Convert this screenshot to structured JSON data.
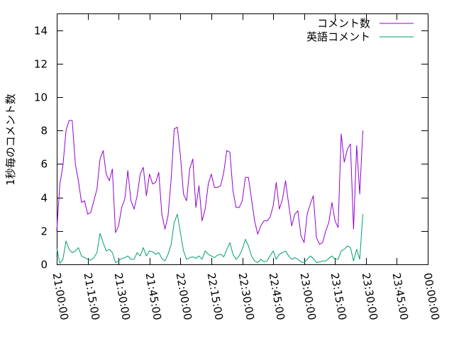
{
  "chart_data": {
    "type": "line",
    "ylabel": "1秒毎のコメント数",
    "xlabel": "",
    "ylim": [
      0,
      15
    ],
    "yticks": [
      0,
      2,
      4,
      6,
      8,
      10,
      12,
      14
    ],
    "xlim": [
      0,
      180
    ],
    "xtick_positions": [
      0,
      15,
      30,
      45,
      60,
      75,
      90,
      105,
      120,
      135,
      150,
      165,
      180
    ],
    "xtick_labels": [
      "21:00:00",
      "21:15:00",
      "21:30:00",
      "21:45:00",
      "22:00:00",
      "22:15:00",
      "22:30:00",
      "22:45:00",
      "23:00:00",
      "23:15:00",
      "23:30:00",
      "23:45:00",
      "00:00:00"
    ],
    "x_unit": "minutes since 21:00:00",
    "legend_position": "top-right",
    "grid": false,
    "series": [
      {
        "name": "コメント数",
        "color": "#9400d3",
        "points": [
          [
            0,
            2.0
          ],
          [
            1.5,
            4.8
          ],
          [
            3,
            5.9
          ],
          [
            4.5,
            8.0
          ],
          [
            6,
            8.6
          ],
          [
            7.5,
            8.6
          ],
          [
            9,
            6.0
          ],
          [
            10.5,
            5.0
          ],
          [
            12,
            3.7
          ],
          [
            13.5,
            3.8
          ],
          [
            15,
            3.0
          ],
          [
            16.5,
            3.1
          ],
          [
            18,
            3.8
          ],
          [
            19.5,
            4.5
          ],
          [
            21,
            6.3
          ],
          [
            22.5,
            6.8
          ],
          [
            24,
            5.4
          ],
          [
            25.5,
            5.0
          ],
          [
            27,
            5.7
          ],
          [
            28.5,
            1.9
          ],
          [
            30,
            2.3
          ],
          [
            31.5,
            3.4
          ],
          [
            33,
            3.9
          ],
          [
            34.5,
            5.6
          ],
          [
            36,
            3.8
          ],
          [
            37.5,
            3.3
          ],
          [
            39,
            4.1
          ],
          [
            40.5,
            5.4
          ],
          [
            42,
            5.8
          ],
          [
            43.5,
            4.1
          ],
          [
            45,
            5.4
          ],
          [
            46.5,
            4.8
          ],
          [
            48,
            4.9
          ],
          [
            49.5,
            5.5
          ],
          [
            51,
            3.0
          ],
          [
            52.5,
            2.1
          ],
          [
            54,
            2.9
          ],
          [
            55.5,
            5.1
          ],
          [
            57,
            8.1
          ],
          [
            58.5,
            8.2
          ],
          [
            60,
            6.5
          ],
          [
            61.5,
            4.2
          ],
          [
            63,
            3.8
          ],
          [
            64.5,
            5.7
          ],
          [
            66,
            6.3
          ],
          [
            67.5,
            3.4
          ],
          [
            69,
            4.7
          ],
          [
            70.5,
            2.6
          ],
          [
            72,
            3.3
          ],
          [
            73.5,
            4.8
          ],
          [
            75,
            5.4
          ],
          [
            76.5,
            4.6
          ],
          [
            78,
            4.6
          ],
          [
            79.5,
            4.7
          ],
          [
            81,
            5.5
          ],
          [
            82.5,
            6.8
          ],
          [
            84,
            6.7
          ],
          [
            85.5,
            4.4
          ],
          [
            87,
            3.4
          ],
          [
            88.5,
            3.4
          ],
          [
            90,
            3.8
          ],
          [
            91.5,
            5.2
          ],
          [
            93,
            5.2
          ],
          [
            94.5,
            3.9
          ],
          [
            96,
            2.6
          ],
          [
            97.5,
            1.8
          ],
          [
            99,
            2.3
          ],
          [
            100.5,
            2.6
          ],
          [
            102,
            2.6
          ],
          [
            103.5,
            2.8
          ],
          [
            105,
            3.5
          ],
          [
            106.5,
            4.9
          ],
          [
            108,
            3.3
          ],
          [
            109.5,
            3.9
          ],
          [
            111,
            5.0
          ],
          [
            112.5,
            3.6
          ],
          [
            114,
            2.3
          ],
          [
            115.5,
            3.0
          ],
          [
            117,
            3.2
          ],
          [
            118.5,
            1.7
          ],
          [
            120,
            1.3
          ],
          [
            121.5,
            3.0
          ],
          [
            123,
            3.6
          ],
          [
            124.5,
            4.1
          ],
          [
            126,
            1.6
          ],
          [
            127.5,
            1.2
          ],
          [
            129,
            1.3
          ],
          [
            130.5,
            2.0
          ],
          [
            132,
            2.5
          ],
          [
            133.5,
            3.7
          ],
          [
            135,
            2.6
          ],
          [
            136.5,
            2.2
          ],
          [
            138,
            7.8
          ],
          [
            139.5,
            6.1
          ],
          [
            141,
            6.9
          ],
          [
            142.5,
            7.2
          ],
          [
            144,
            2.1
          ],
          [
            145.5,
            7.1
          ],
          [
            147,
            4.2
          ],
          [
            148.5,
            8.0
          ]
        ]
      },
      {
        "name": "英語コメント",
        "color": "#009e73",
        "points": [
          [
            0,
            1.0
          ],
          [
            1.5,
            0.05
          ],
          [
            3,
            0.3
          ],
          [
            4.5,
            1.4
          ],
          [
            6,
            0.9
          ],
          [
            7.5,
            0.7
          ],
          [
            9,
            0.8
          ],
          [
            10.5,
            1.0
          ],
          [
            12,
            0.5
          ],
          [
            13.5,
            0.4
          ],
          [
            15,
            0.3
          ],
          [
            16.5,
            0.25
          ],
          [
            18,
            0.4
          ],
          [
            19.5,
            0.7
          ],
          [
            21,
            1.85
          ],
          [
            22.5,
            1.3
          ],
          [
            24,
            0.8
          ],
          [
            25.5,
            0.9
          ],
          [
            27,
            0.7
          ],
          [
            28.5,
            0.1
          ],
          [
            30,
            0.2
          ],
          [
            31.5,
            0.35
          ],
          [
            33,
            0.4
          ],
          [
            34.5,
            0.5
          ],
          [
            36,
            0.3
          ],
          [
            37.5,
            0.3
          ],
          [
            39,
            0.7
          ],
          [
            40.5,
            0.5
          ],
          [
            42,
            1.0
          ],
          [
            43.5,
            0.5
          ],
          [
            45,
            0.8
          ],
          [
            46.5,
            0.75
          ],
          [
            48,
            0.6
          ],
          [
            49.5,
            0.7
          ],
          [
            51,
            0.35
          ],
          [
            52.5,
            0.2
          ],
          [
            54,
            0.6
          ],
          [
            55.5,
            1.2
          ],
          [
            57,
            2.5
          ],
          [
            58.5,
            3.0
          ],
          [
            60,
            1.9
          ],
          [
            61.5,
            0.8
          ],
          [
            63,
            0.3
          ],
          [
            64.5,
            0.4
          ],
          [
            66,
            0.45
          ],
          [
            67.5,
            0.35
          ],
          [
            69,
            0.5
          ],
          [
            70.5,
            0.3
          ],
          [
            72,
            0.8
          ],
          [
            73.5,
            0.6
          ],
          [
            75,
            0.5
          ],
          [
            76.5,
            0.4
          ],
          [
            78,
            0.55
          ],
          [
            79.5,
            0.6
          ],
          [
            81,
            0.45
          ],
          [
            82.5,
            0.9
          ],
          [
            84,
            1.3
          ],
          [
            85.5,
            0.6
          ],
          [
            87,
            0.3
          ],
          [
            88.5,
            0.5
          ],
          [
            90,
            0.9
          ],
          [
            91.5,
            1.5
          ],
          [
            93,
            1.1
          ],
          [
            94.5,
            0.5
          ],
          [
            96,
            0.2
          ],
          [
            97.5,
            0.1
          ],
          [
            99,
            0.3
          ],
          [
            100.5,
            0.15
          ],
          [
            102,
            0.2
          ],
          [
            103.5,
            0.5
          ],
          [
            105,
            0.8
          ],
          [
            106.5,
            0.3
          ],
          [
            108,
            0.6
          ],
          [
            109.5,
            0.7
          ],
          [
            111,
            0.8
          ],
          [
            112.5,
            0.5
          ],
          [
            114,
            0.3
          ],
          [
            115.5,
            0.4
          ],
          [
            117,
            0.3
          ],
          [
            118.5,
            0.15
          ],
          [
            120,
            0.1
          ],
          [
            121.5,
            0.3
          ],
          [
            123,
            0.5
          ],
          [
            124.5,
            0.35
          ],
          [
            126,
            0.1
          ],
          [
            127.5,
            0.15
          ],
          [
            129,
            0.2
          ],
          [
            130.5,
            0.2
          ],
          [
            132,
            0.35
          ],
          [
            133.5,
            0.5
          ],
          [
            135,
            0.3
          ],
          [
            136.5,
            0.3
          ],
          [
            138,
            0.8
          ],
          [
            139.5,
            0.9
          ],
          [
            141,
            1.1
          ],
          [
            142.5,
            1.0
          ],
          [
            144,
            0.2
          ],
          [
            145.5,
            0.9
          ],
          [
            147,
            0.3
          ],
          [
            148.5,
            3.0
          ]
        ]
      }
    ]
  }
}
